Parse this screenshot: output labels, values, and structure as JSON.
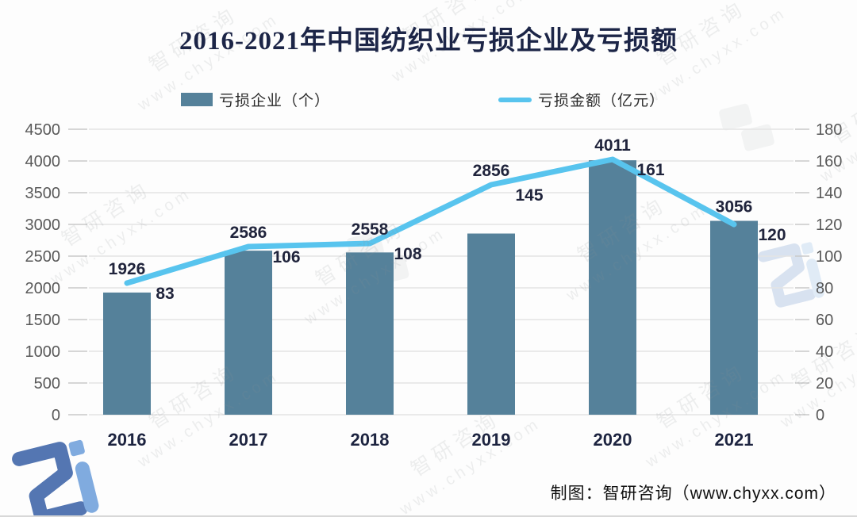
{
  "title": {
    "text": "2016-2021年中国纺织业亏损企业及亏损额",
    "color": "#1C2547"
  },
  "legend": [
    {
      "label": "亏损企业（个）",
      "swatch_color": "#55819A",
      "type": "bar"
    },
    {
      "label": "亏损金额（亿元）",
      "swatch_color": "#58C4EE",
      "type": "line"
    }
  ],
  "chart_data": {
    "type": "combo",
    "title": "2016-2021年中国纺织业亏损企业及亏损额",
    "categories": [
      "2016",
      "2017",
      "2018",
      "2019",
      "2020",
      "2021"
    ],
    "series": [
      {
        "name": "亏损企业（个）",
        "type": "bar",
        "axis": "left",
        "color": "#55819A",
        "values": [
          1926,
          2586,
          2558,
          2856,
          4011,
          3056
        ]
      },
      {
        "name": "亏损金额（亿元）",
        "type": "line",
        "axis": "right",
        "color": "#58C4EE",
        "values": [
          83,
          106,
          108,
          145,
          161,
          120
        ]
      }
    ],
    "left_axis": {
      "min": 0,
      "max": 4500,
      "step": 500,
      "tick_labels": [
        "0",
        "500",
        "1000",
        "1500",
        "2000",
        "2500",
        "3000",
        "3500",
        "4000",
        "4500"
      ]
    },
    "right_axis": {
      "min": 0,
      "max": 180,
      "step": 20,
      "tick_labels": [
        "0",
        "20",
        "40",
        "60",
        "80",
        "100",
        "120",
        "140",
        "160",
        "180"
      ]
    },
    "grid": true,
    "legend_position": "top",
    "colors": {
      "grid_line": "#e4e4e4",
      "tick_mark": "#c9c9c9",
      "axis_label": "#595959",
      "data_label": "#20243C",
      "x_label": "#1D2440"
    }
  },
  "watermark": {
    "brand": "智研咨询",
    "url": "www.chyxx.com"
  },
  "footer": {
    "attribution": "制图：智研咨询（www.chyxx.com）"
  }
}
